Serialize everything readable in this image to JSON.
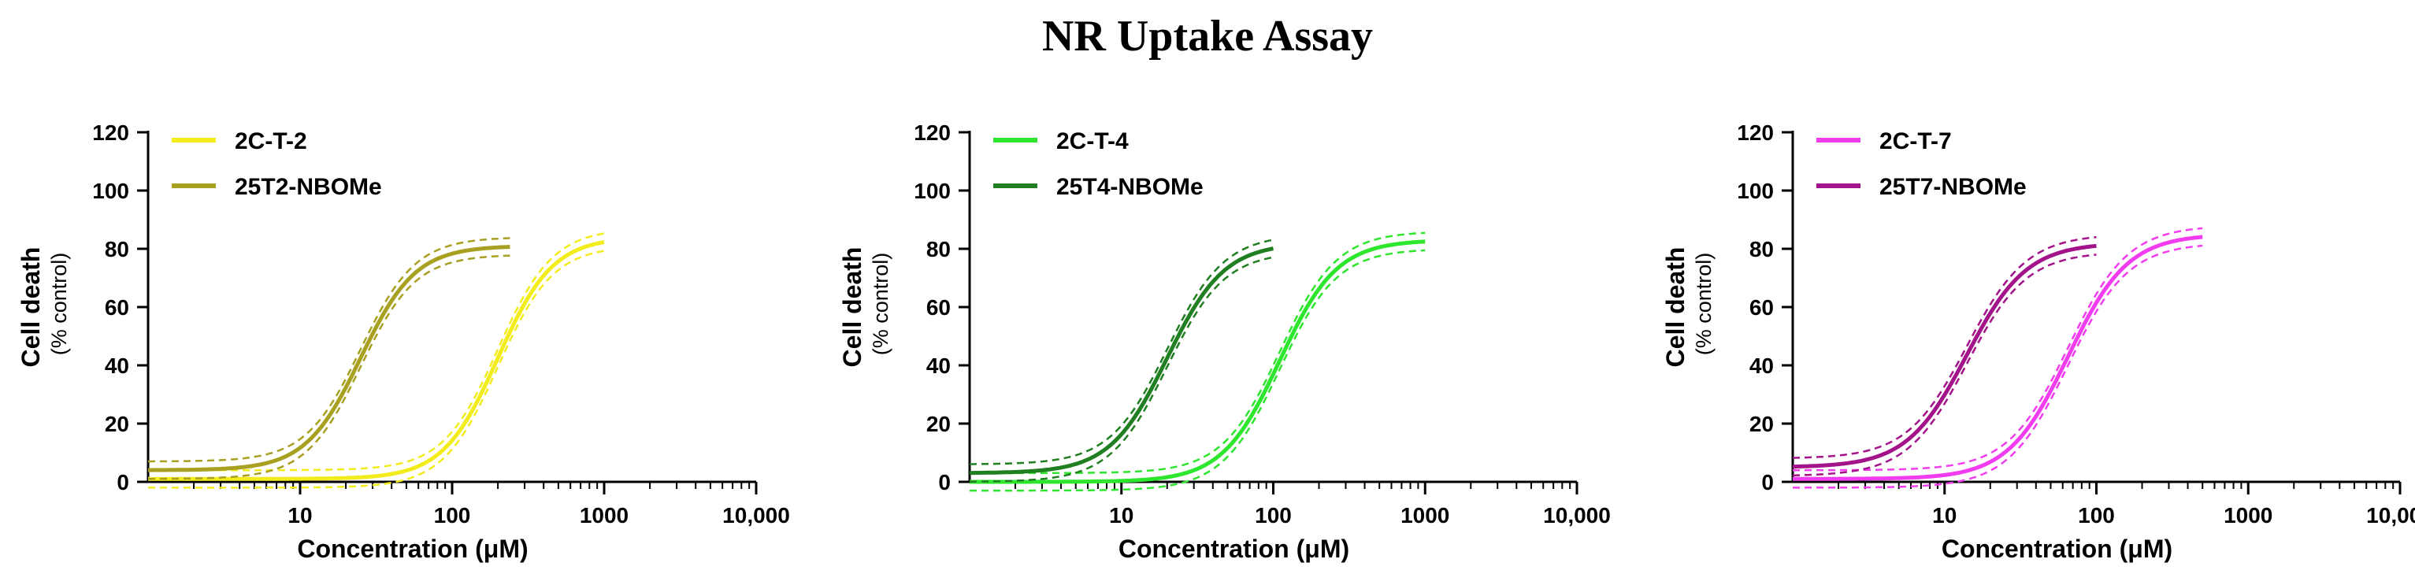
{
  "figure": {
    "title": "NR Uptake Assay"
  },
  "chart_data": [
    {
      "type": "line",
      "xscale": "log",
      "xlim": [
        1,
        10000
      ],
      "ylim": [
        0,
        120
      ],
      "xticks": [
        10,
        100,
        1000,
        10000
      ],
      "xtick_labels": [
        "10",
        "100",
        "1000",
        "10,000"
      ],
      "yticks": [
        0,
        20,
        40,
        60,
        80,
        100,
        120
      ],
      "ytick_labels": [
        "0",
        "20",
        "40",
        "60",
        "80",
        "100",
        "120"
      ],
      "xlabel": "Concentration (μM)",
      "ylabel": "Cell death",
      "ylabel_sub": "(% control)",
      "legend_position": "top-left",
      "series": [
        {
          "name": "2C-T-2",
          "color": "#f2ec1c",
          "bottom": 1,
          "top": 84,
          "ec50": 200,
          "hill": 2.4,
          "x_end": 1000,
          "ci": 3
        },
        {
          "name": "25T2-NBOMe",
          "color": "#a8a021",
          "bottom": 4,
          "top": 81,
          "ec50": 25,
          "hill": 2.4,
          "x_end": 240,
          "ci": 3
        }
      ]
    },
    {
      "type": "line",
      "xscale": "log",
      "xlim": [
        1,
        10000
      ],
      "ylim": [
        0,
        120
      ],
      "xticks": [
        10,
        100,
        1000,
        10000
      ],
      "xtick_labels": [
        "10",
        "100",
        "1000",
        "10,000"
      ],
      "yticks": [
        0,
        20,
        40,
        60,
        80,
        100,
        120
      ],
      "ytick_labels": [
        "0",
        "20",
        "40",
        "60",
        "80",
        "100",
        "120"
      ],
      "xlabel": "Concentration (μM)",
      "ylabel": "Cell death",
      "ylabel_sub": "(% control)",
      "legend_position": "top-left",
      "series": [
        {
          "name": "2C-T-4",
          "color": "#2de62d",
          "bottom": 0,
          "top": 83,
          "ec50": 110,
          "hill": 2.3,
          "x_end": 1000,
          "ci": 3
        },
        {
          "name": "25T4-NBOMe",
          "color": "#207f20",
          "bottom": 3,
          "top": 82,
          "ec50": 20,
          "hill": 2.3,
          "x_end": 100,
          "ci": 3
        }
      ]
    },
    {
      "type": "line",
      "xscale": "log",
      "xlim": [
        1,
        10000
      ],
      "ylim": [
        0,
        120
      ],
      "xticks": [
        10,
        100,
        1000,
        10000
      ],
      "xtick_labels": [
        "10",
        "100",
        "1000",
        "10,000"
      ],
      "yticks": [
        0,
        20,
        40,
        60,
        80,
        100,
        120
      ],
      "ytick_labels": [
        "0",
        "20",
        "40",
        "60",
        "80",
        "100",
        "120"
      ],
      "xlabel": "Concentration (μM)",
      "ylabel": "Cell death",
      "ylabel_sub": "(% control)",
      "legend_position": "top-left",
      "series": [
        {
          "name": "2C-T-7",
          "color": "#f23cf0",
          "bottom": 1,
          "top": 85,
          "ec50": 65,
          "hill": 2.2,
          "x_end": 500,
          "ci": 3
        },
        {
          "name": "25T7-NBOMe",
          "color": "#a3138a",
          "bottom": 5,
          "top": 82,
          "ec50": 14,
          "hill": 2.2,
          "x_end": 100,
          "ci": 3
        }
      ]
    }
  ]
}
